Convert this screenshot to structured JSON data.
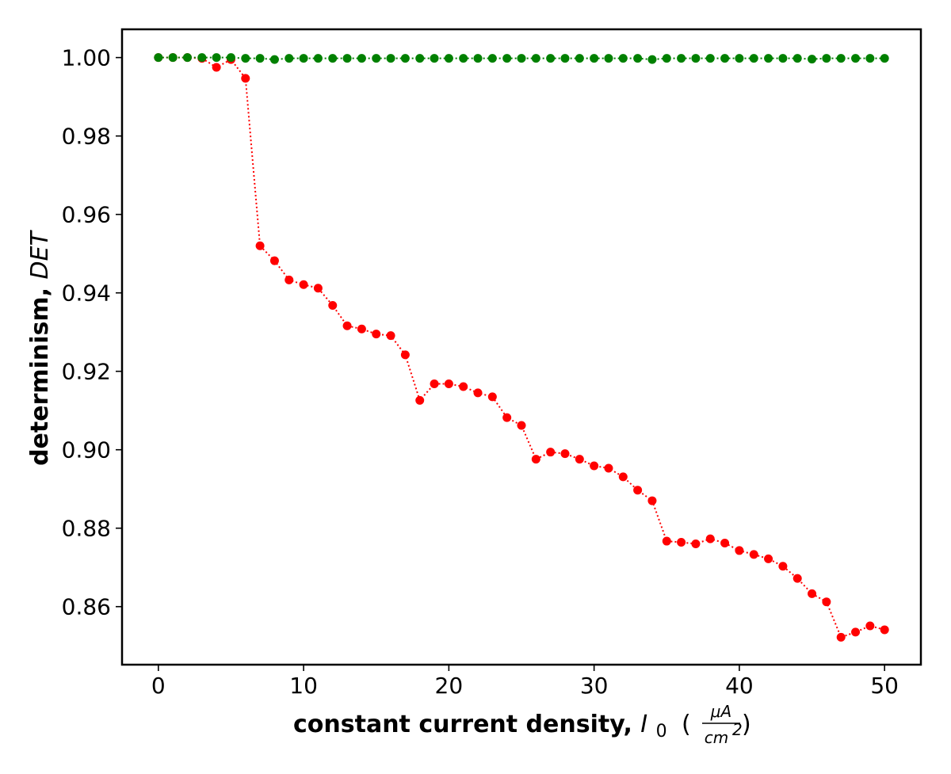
{
  "chart_data": {
    "type": "line",
    "x": [
      0,
      1,
      2,
      3,
      4,
      5,
      6,
      7,
      8,
      9,
      10,
      11,
      12,
      13,
      14,
      15,
      16,
      17,
      18,
      19,
      20,
      21,
      22,
      23,
      24,
      25,
      26,
      27,
      28,
      29,
      30,
      31,
      32,
      33,
      34,
      35,
      36,
      37,
      38,
      39,
      40,
      41,
      42,
      43,
      44,
      45,
      46,
      47,
      48,
      49,
      50
    ],
    "series": [
      {
        "color": "#ff0000",
        "line_style": "dotted",
        "marker": "circle",
        "values": [
          1.0,
          1.0,
          1.0,
          0.9998,
          0.9975,
          0.9995,
          0.9947,
          0.952,
          0.9482,
          0.9433,
          0.9421,
          0.9412,
          0.9368,
          0.9316,
          0.9308,
          0.9295,
          0.9291,
          0.9242,
          0.9126,
          0.9168,
          0.9168,
          0.9161,
          0.9145,
          0.9135,
          0.9082,
          0.9062,
          0.8976,
          0.8994,
          0.899,
          0.8976,
          0.8959,
          0.8953,
          0.8931,
          0.8897,
          0.887,
          0.8767,
          0.8764,
          0.876,
          0.8773,
          0.8762,
          0.8743,
          0.8733,
          0.8722,
          0.8703,
          0.8672,
          0.8633,
          0.8612,
          0.8522,
          0.8535,
          0.8551,
          0.8541
        ]
      },
      {
        "color": "#008000",
        "line_style": "dotted",
        "marker": "circle",
        "values": [
          1.0,
          1.0,
          1.0,
          1.0,
          1.0,
          1.0,
          0.9998,
          0.9998,
          0.9995,
          0.9998,
          0.9998,
          0.9998,
          0.9998,
          0.9998,
          0.9998,
          0.9998,
          0.9998,
          0.9998,
          0.9998,
          0.9998,
          0.9998,
          0.9998,
          0.9998,
          0.9998,
          0.9998,
          0.9998,
          0.9998,
          0.9998,
          0.9998,
          0.9998,
          0.9998,
          0.9998,
          0.9998,
          0.9998,
          0.9995,
          0.9998,
          0.9998,
          0.9998,
          0.9998,
          0.9998,
          0.9998,
          0.9998,
          0.9998,
          0.9998,
          0.9998,
          0.9996,
          0.9998,
          0.9998,
          0.9998,
          0.9998,
          0.9998
        ]
      }
    ],
    "xlabel": {
      "bold": "constant current density, ",
      "symbol": "I",
      "subscript": "0",
      "unit_open": "(",
      "unit_numerator": "μA",
      "unit_denominator": "cm",
      "unit_power": "2",
      "unit_close": ")"
    },
    "ylabel": {
      "bold": "determinism, ",
      "symbol": "DET"
    },
    "xlim": [
      -2.5,
      52.5
    ],
    "ylim": [
      0.8452,
      1.0072
    ],
    "xticks": [
      0,
      10,
      20,
      30,
      40,
      50
    ],
    "xtick_labels": [
      "0",
      "10",
      "20",
      "30",
      "40",
      "50"
    ],
    "yticks": [
      0.86,
      0.88,
      0.9,
      0.92,
      0.94,
      0.96,
      0.98,
      1.0
    ],
    "ytick_labels": [
      "0.86",
      "0.88",
      "0.90",
      "0.92",
      "0.94",
      "0.96",
      "0.98",
      "1.00"
    ],
    "grid": false,
    "legend": "none"
  }
}
